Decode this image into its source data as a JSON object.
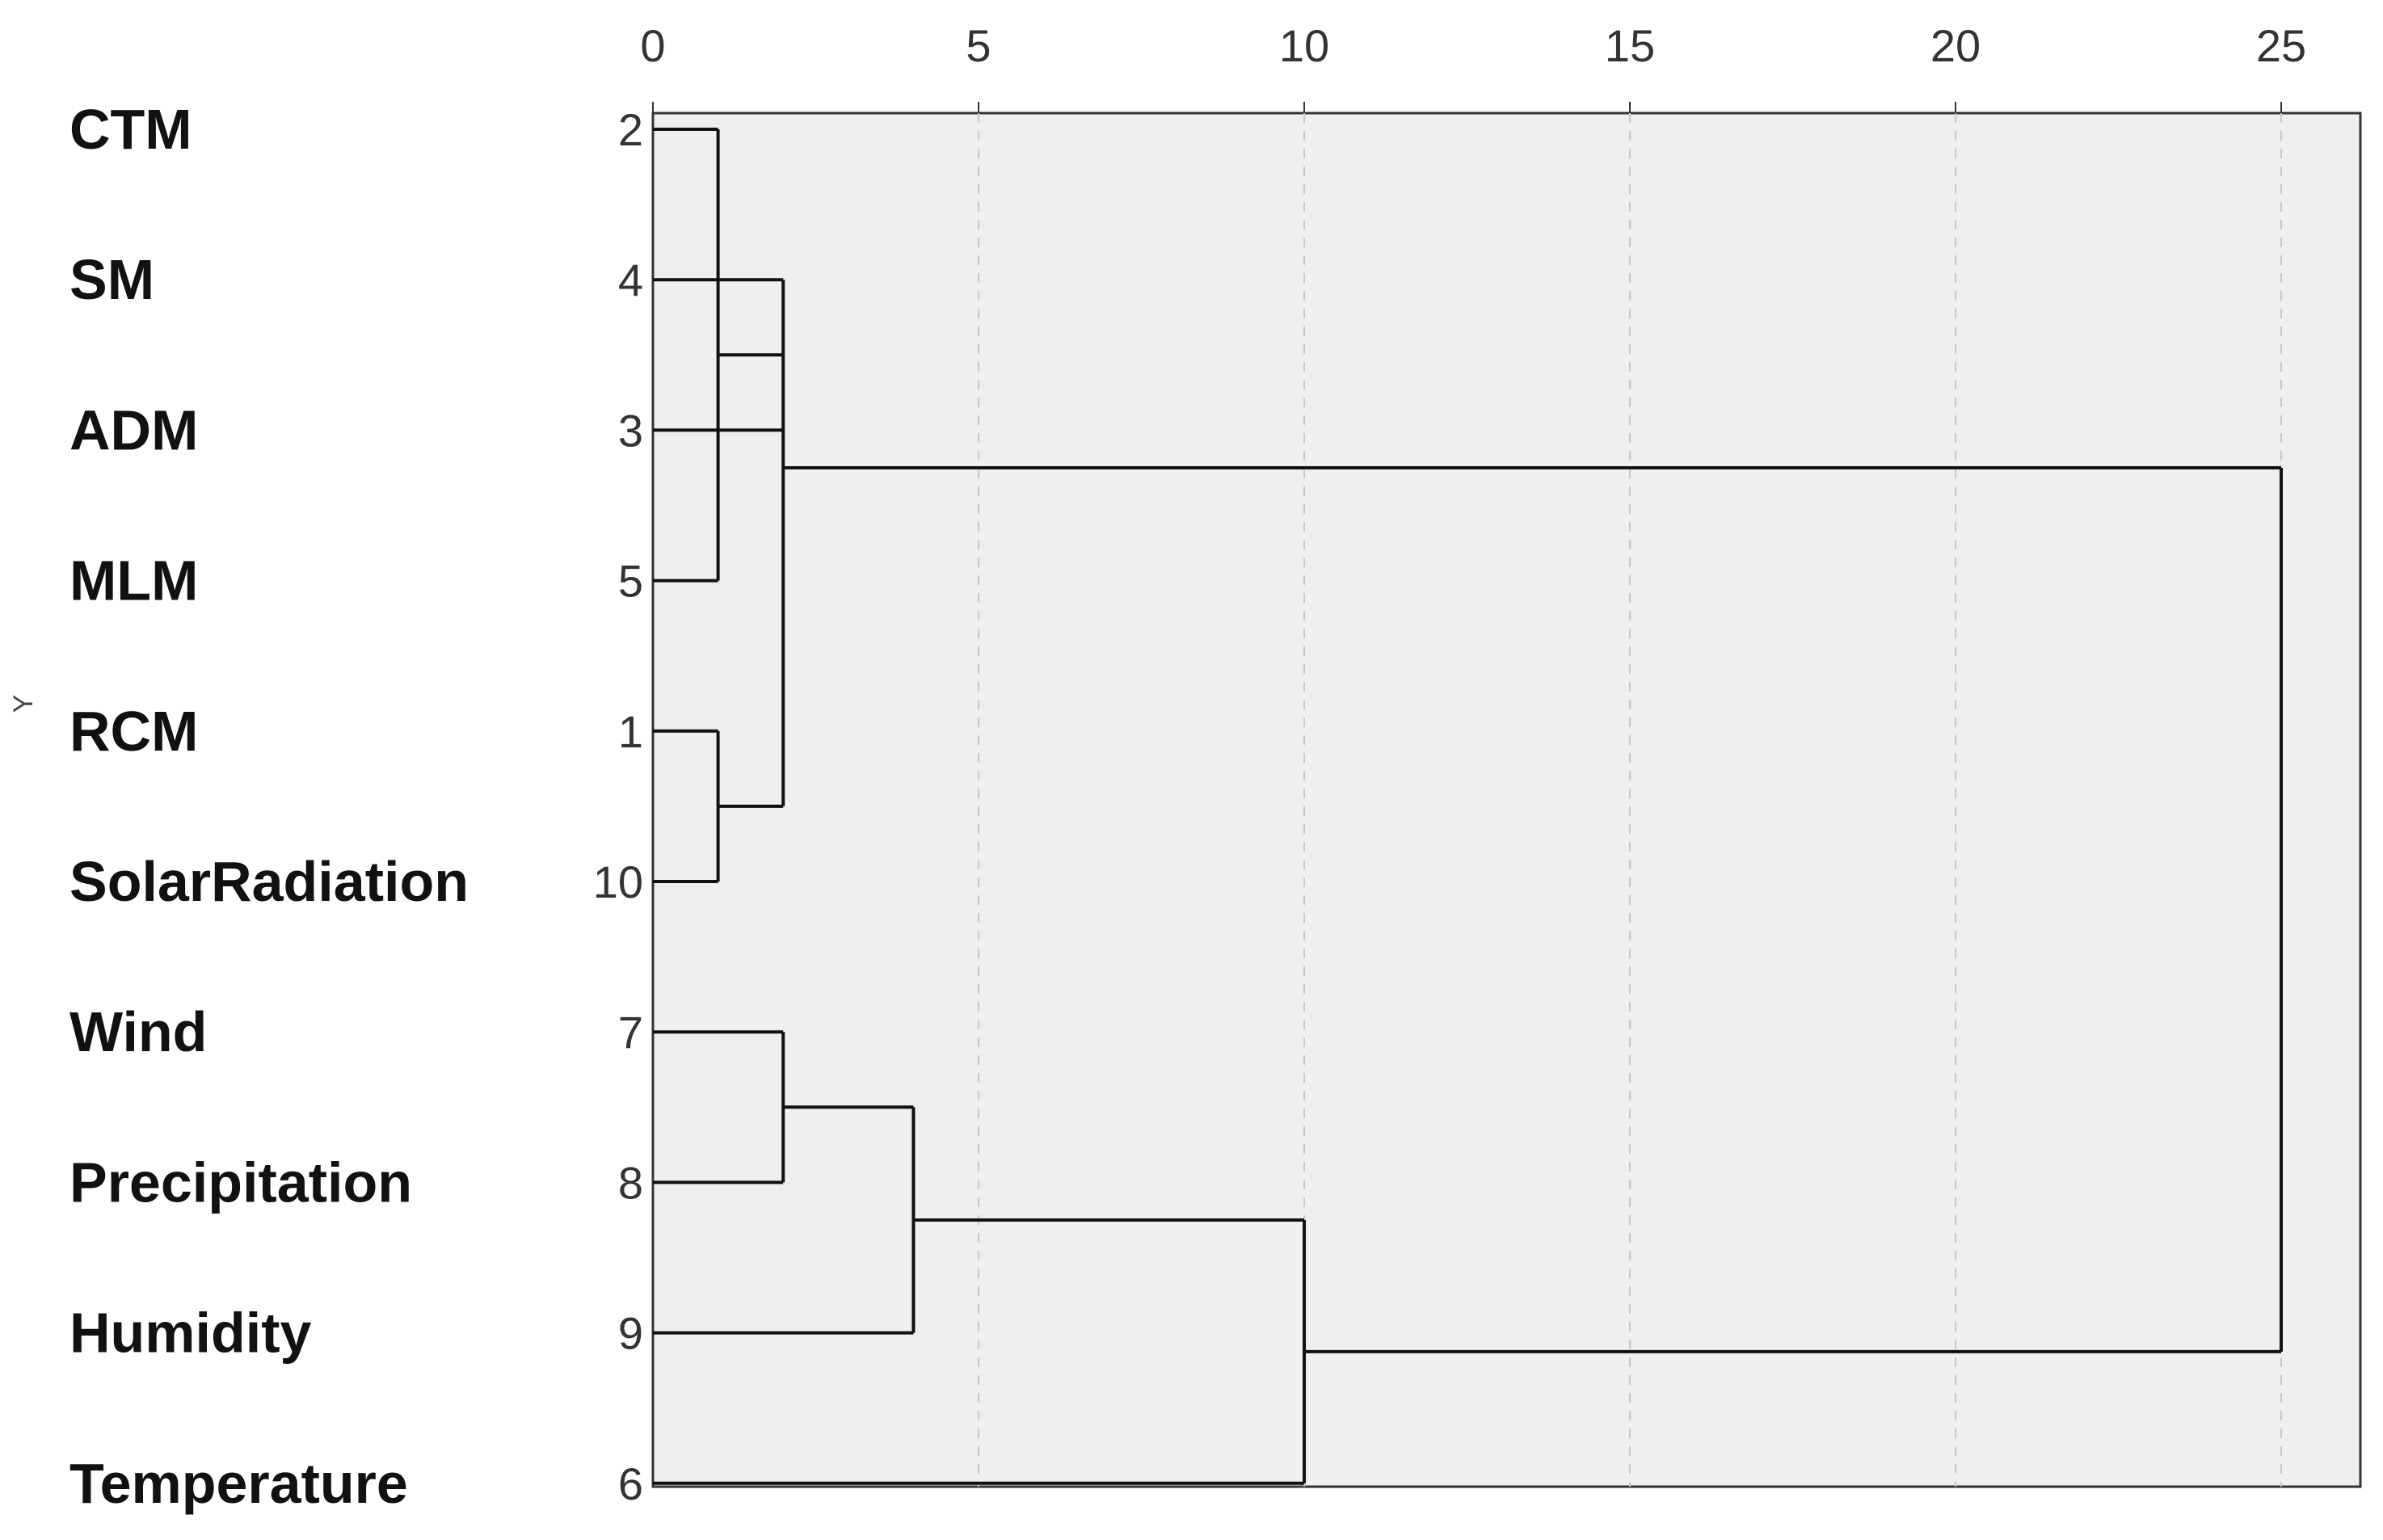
{
  "chart_data": {
    "type": "dendrogram",
    "title": "",
    "xlabel": "",
    "ylabel": "Y",
    "xlim": [
      0,
      26.2
    ],
    "x_ticks": [
      0,
      5,
      10,
      15,
      20,
      25
    ],
    "grid": true,
    "leaves": [
      {
        "name": "CTM",
        "case": "2"
      },
      {
        "name": "SM",
        "case": "4"
      },
      {
        "name": "ADM",
        "case": "3"
      },
      {
        "name": "MLM",
        "case": "5"
      },
      {
        "name": "RCM",
        "case": "1"
      },
      {
        "name": "SolarRadiation",
        "case": "10"
      },
      {
        "name": "Wind",
        "case": "7"
      },
      {
        "name": "Precipitation",
        "case": "8"
      },
      {
        "name": "Humidity",
        "case": "9"
      },
      {
        "name": "Temperature",
        "case": "6"
      }
    ],
    "merges": [
      {
        "members": [
          "CTM",
          "MLM"
        ],
        "distance": 1
      },
      {
        "members": [
          "RCM",
          "SolarRadiation"
        ],
        "distance": 1
      },
      {
        "members": [
          "CTM",
          "MLM",
          "SM",
          "ADM",
          "RCM",
          "SolarRadiation"
        ],
        "distance": 2
      },
      {
        "members": [
          "Wind",
          "Precipitation"
        ],
        "distance": 2
      },
      {
        "members": [
          "Wind",
          "Precipitation",
          "Humidity"
        ],
        "distance": 4
      },
      {
        "members": [
          "Wind",
          "Precipitation",
          "Humidity",
          "Temperature"
        ],
        "distance": 10
      },
      {
        "members": [
          "CTM",
          "MLM",
          "SM",
          "ADM",
          "RCM",
          "SolarRadiation",
          "Wind",
          "Precipitation",
          "Humidity",
          "Temperature"
        ],
        "distance": 25
      }
    ]
  }
}
